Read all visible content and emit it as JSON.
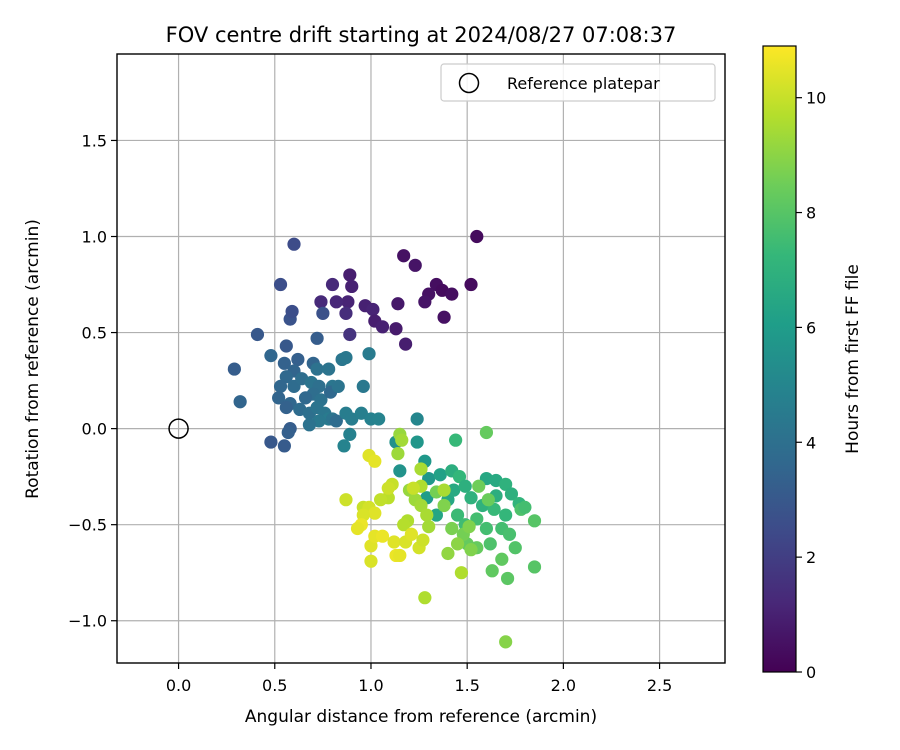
{
  "chart_data": {
    "type": "scatter",
    "title": "FOV centre drift starting at 2024/08/27 07:08:37",
    "xlabel": "Angular distance from reference (arcmin)",
    "ylabel": "Rotation from reference (arcmin)",
    "xlim": [
      -0.32,
      2.84
    ],
    "ylim": [
      -1.22,
      1.95
    ],
    "xticks": [
      0.0,
      0.5,
      1.0,
      1.5,
      2.0,
      2.5
    ],
    "xtick_labels": [
      "0.0",
      "0.5",
      "1.0",
      "1.5",
      "2.0",
      "2.5"
    ],
    "yticks": [
      -1.0,
      -0.5,
      0.0,
      0.5,
      1.0,
      1.5
    ],
    "ytick_labels": [
      "−1.0",
      "−0.5",
      "0.0",
      "0.5",
      "1.0",
      "1.5"
    ],
    "grid": true,
    "legend": {
      "placement": "upper right",
      "entries": [
        "Reference platepar"
      ]
    },
    "reference_point": {
      "x": 0.0,
      "y": 0.0,
      "marker": "open-circle"
    },
    "colorbar": {
      "label": "Hours from first FF file",
      "range": [
        0,
        10.9
      ],
      "ticks": [
        0,
        2,
        4,
        6,
        8,
        10
      ],
      "tick_labels": [
        "0",
        "2",
        "4",
        "6",
        "8",
        "10"
      ],
      "colormap": "viridis"
    },
    "points": [
      [
        1.55,
        1.0,
        0.3
      ],
      [
        1.17,
        0.9,
        0.5
      ],
      [
        1.23,
        0.85,
        0.6
      ],
      [
        1.34,
        0.75,
        0.4
      ],
      [
        1.37,
        0.72,
        0.3
      ],
      [
        1.3,
        0.7,
        0.5
      ],
      [
        1.42,
        0.7,
        0.4
      ],
      [
        1.28,
        0.66,
        0.6
      ],
      [
        1.52,
        0.75,
        0.3
      ],
      [
        1.38,
        0.58,
        0.5
      ],
      [
        0.89,
        0.8,
        0.9
      ],
      [
        0.9,
        0.74,
        1.0
      ],
      [
        0.8,
        0.75,
        1.3
      ],
      [
        0.88,
        0.66,
        1.1
      ],
      [
        0.82,
        0.66,
        1.2
      ],
      [
        0.74,
        0.66,
        1.3
      ],
      [
        0.97,
        0.64,
        1.0
      ],
      [
        1.01,
        0.62,
        1.1
      ],
      [
        1.02,
        0.56,
        0.9
      ],
      [
        1.06,
        0.53,
        1.0
      ],
      [
        1.13,
        0.52,
        0.8
      ],
      [
        1.14,
        0.65,
        0.7
      ],
      [
        1.18,
        0.44,
        0.9
      ],
      [
        0.87,
        0.6,
        1.4
      ],
      [
        0.89,
        0.49,
        1.6
      ],
      [
        0.6,
        0.96,
        2.5
      ],
      [
        0.53,
        0.75,
        2.6
      ],
      [
        0.58,
        0.57,
        2.8
      ],
      [
        0.59,
        0.61,
        2.6
      ],
      [
        0.56,
        0.43,
        3.0
      ],
      [
        0.72,
        0.47,
        3.2
      ],
      [
        0.75,
        0.6,
        2.7
      ],
      [
        0.41,
        0.49,
        3.0
      ],
      [
        0.62,
        0.36,
        3.3
      ],
      [
        0.7,
        0.34,
        3.5
      ],
      [
        0.29,
        0.31,
        3.2
      ],
      [
        0.48,
        0.38,
        3.6
      ],
      [
        0.55,
        0.34,
        3.4
      ],
      [
        0.6,
        0.3,
        3.5
      ],
      [
        0.56,
        0.27,
        3.7
      ],
      [
        0.6,
        0.22,
        3.8
      ],
      [
        0.53,
        0.22,
        3.6
      ],
      [
        0.64,
        0.26,
        3.9
      ],
      [
        0.72,
        0.31,
        4.1
      ],
      [
        0.78,
        0.31,
        4.2
      ],
      [
        0.8,
        0.22,
        4.3
      ],
      [
        0.69,
        0.24,
        4.2
      ],
      [
        0.73,
        0.22,
        4.0
      ],
      [
        0.7,
        0.18,
        3.9
      ],
      [
        0.66,
        0.16,
        3.7
      ],
      [
        0.74,
        0.15,
        4.1
      ],
      [
        0.79,
        0.19,
        3.7
      ],
      [
        0.52,
        0.16,
        3.5
      ],
      [
        0.58,
        0.13,
        3.6
      ],
      [
        0.56,
        0.11,
        3.4
      ],
      [
        0.63,
        0.1,
        3.8
      ],
      [
        0.68,
        0.08,
        4.0
      ],
      [
        0.72,
        0.11,
        4.2
      ],
      [
        0.76,
        0.08,
        4.3
      ],
      [
        0.78,
        0.05,
        4.5
      ],
      [
        0.73,
        0.04,
        4.4
      ],
      [
        0.68,
        0.02,
        4.1
      ],
      [
        0.8,
        0.05,
        4.2
      ],
      [
        0.82,
        0.04,
        3.8
      ],
      [
        0.87,
        0.08,
        4.6
      ],
      [
        0.9,
        0.05,
        4.6
      ],
      [
        0.95,
        0.08,
        4.7
      ],
      [
        1.0,
        0.05,
        4.8
      ],
      [
        1.04,
        0.05,
        4.9
      ],
      [
        0.89,
        -0.03,
        4.8
      ],
      [
        0.86,
        -0.09,
        4.9
      ],
      [
        0.85,
        0.36,
        4.3
      ],
      [
        0.87,
        0.37,
        4.4
      ],
      [
        0.99,
        0.39,
        4.5
      ],
      [
        0.96,
        0.22,
        4.4
      ],
      [
        0.83,
        0.22,
        4.2
      ],
      [
        0.58,
        0.0,
        3.2
      ],
      [
        0.57,
        -0.02,
        3.3
      ],
      [
        0.48,
        -0.07,
        3.0
      ],
      [
        0.55,
        -0.09,
        3.1
      ],
      [
        0.32,
        0.14,
        3.5
      ],
      [
        1.24,
        0.05,
        5.0
      ],
      [
        1.13,
        -0.07,
        5.5
      ],
      [
        1.24,
        -0.07,
        5.7
      ],
      [
        1.28,
        -0.17,
        5.8
      ],
      [
        1.15,
        -0.22,
        5.6
      ],
      [
        1.3,
        -0.26,
        5.8
      ],
      [
        1.36,
        -0.24,
        6.2
      ],
      [
        1.29,
        -0.36,
        6.0
      ],
      [
        1.34,
        -0.45,
        6.4
      ],
      [
        1.4,
        -0.37,
        6.5
      ],
      [
        1.43,
        -0.32,
        6.6
      ],
      [
        1.42,
        -0.22,
        6.8
      ],
      [
        1.46,
        -0.25,
        7.2
      ],
      [
        1.49,
        -0.3,
        6.9
      ],
      [
        1.52,
        -0.36,
        7.0
      ],
      [
        1.6,
        -0.26,
        6.5
      ],
      [
        1.65,
        -0.27,
        6.6
      ],
      [
        1.65,
        -0.35,
        6.8
      ],
      [
        1.7,
        -0.29,
        7.0
      ],
      [
        1.73,
        -0.34,
        6.9
      ],
      [
        1.77,
        -0.39,
        7.1
      ],
      [
        1.58,
        -0.4,
        7.0
      ],
      [
        1.64,
        -0.42,
        7.3
      ],
      [
        1.7,
        -0.45,
        7.2
      ],
      [
        1.45,
        -0.45,
        7.4
      ],
      [
        1.49,
        -0.5,
        7.5
      ],
      [
        1.55,
        -0.47,
        7.6
      ],
      [
        1.6,
        -0.52,
        7.6
      ],
      [
        1.62,
        -0.6,
        7.8
      ],
      [
        1.68,
        -0.52,
        7.6
      ],
      [
        1.72,
        -0.55,
        7.7
      ],
      [
        1.78,
        -0.42,
        7.8
      ],
      [
        1.75,
        -0.62,
        7.9
      ],
      [
        1.8,
        -0.41,
        7.6
      ],
      [
        1.85,
        -0.48,
        8.0
      ],
      [
        1.85,
        -0.72,
        8.0
      ],
      [
        1.63,
        -0.74,
        8.2
      ],
      [
        1.71,
        -0.78,
        8.1
      ],
      [
        1.68,
        -0.68,
        8.2
      ],
      [
        1.55,
        -0.62,
        8.3
      ],
      [
        1.5,
        -0.6,
        8.3
      ],
      [
        1.56,
        -0.3,
        8.5
      ],
      [
        1.61,
        -0.37,
        8.4
      ],
      [
        1.44,
        -0.06,
        7.3
      ],
      [
        1.6,
        -0.02,
        8.3
      ],
      [
        1.34,
        -0.33,
        8.6
      ],
      [
        1.38,
        -0.4,
        8.8
      ],
      [
        1.42,
        -0.52,
        8.7
      ],
      [
        1.48,
        -0.55,
        8.6
      ],
      [
        1.51,
        -0.51,
        8.8
      ],
      [
        1.52,
        -0.63,
        8.8
      ],
      [
        1.45,
        -0.6,
        9.0
      ],
      [
        1.4,
        -0.65,
        9.1
      ],
      [
        1.28,
        -0.88,
        9.6
      ],
      [
        1.47,
        -0.75,
        9.6
      ],
      [
        1.7,
        -1.11,
        8.9
      ],
      [
        1.2,
        -0.32,
        9.2
      ],
      [
        1.23,
        -0.37,
        9.3
      ],
      [
        1.26,
        -0.4,
        9.4
      ],
      [
        1.29,
        -0.45,
        9.5
      ],
      [
        1.19,
        -0.48,
        9.6
      ],
      [
        1.17,
        -0.5,
        9.7
      ],
      [
        1.09,
        -0.36,
        9.8
      ],
      [
        1.05,
        -0.37,
        9.9
      ],
      [
        1.11,
        -0.29,
        10.0
      ],
      [
        1.09,
        -0.31,
        10.1
      ],
      [
        0.99,
        -0.14,
        10.4
      ],
      [
        1.02,
        -0.17,
        10.5
      ],
      [
        1.15,
        -0.03,
        9.2
      ],
      [
        1.16,
        -0.06,
        9.4
      ],
      [
        1.14,
        -0.13,
        9.3
      ],
      [
        1.26,
        -0.21,
        9.5
      ],
      [
        1.26,
        -0.3,
        9.6
      ],
      [
        1.3,
        -0.51,
        9.4
      ],
      [
        1.38,
        -0.32,
        9.5
      ],
      [
        0.96,
        -0.41,
        10.0
      ],
      [
        0.99,
        -0.41,
        10.2
      ],
      [
        1.02,
        -0.44,
        10.4
      ],
      [
        0.96,
        -0.45,
        10.3
      ],
      [
        0.95,
        -0.5,
        10.6
      ],
      [
        0.93,
        -0.52,
        10.5
      ],
      [
        0.87,
        -0.37,
        10.1
      ],
      [
        1.0,
        -0.61,
        10.4
      ],
      [
        1.0,
        -0.69,
        10.3
      ],
      [
        1.02,
        -0.56,
        10.5
      ],
      [
        1.06,
        -0.56,
        10.6
      ],
      [
        1.12,
        -0.59,
        10.4
      ],
      [
        1.13,
        -0.66,
        10.6
      ],
      [
        1.15,
        -0.66,
        10.5
      ],
      [
        1.18,
        -0.59,
        10.3
      ],
      [
        1.21,
        -0.55,
        10.4
      ],
      [
        1.25,
        -0.62,
        10.2
      ],
      [
        1.27,
        -0.58,
        10.1
      ],
      [
        1.22,
        -0.31,
        10.0
      ]
    ]
  }
}
